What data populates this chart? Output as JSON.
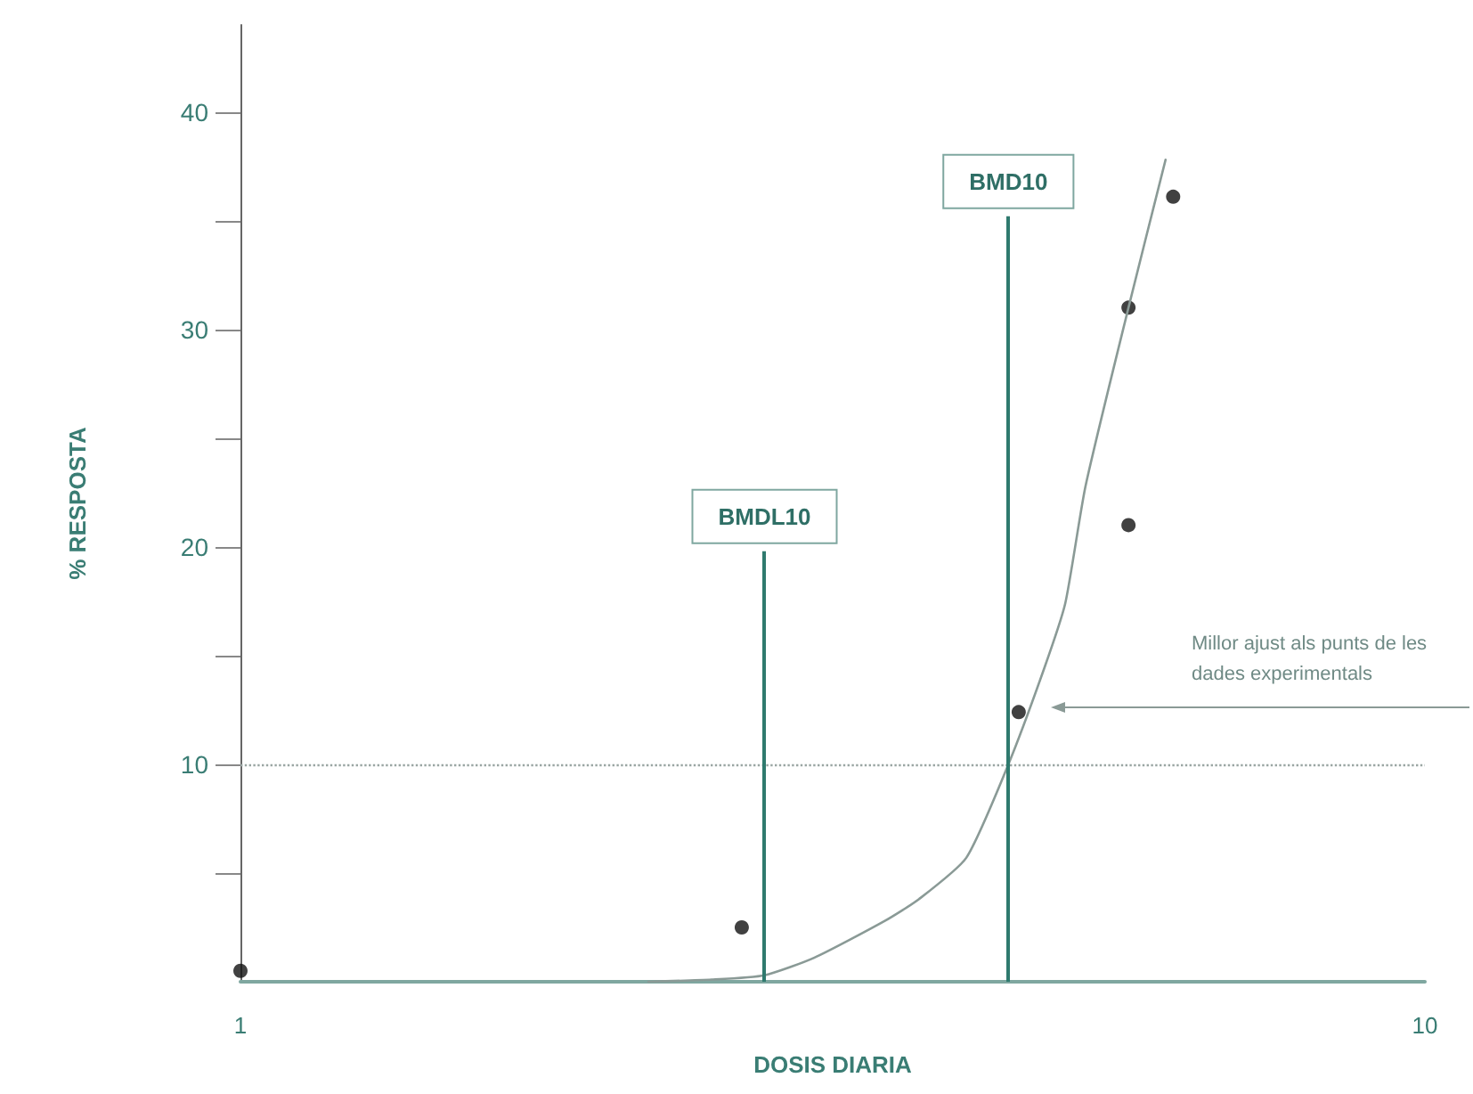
{
  "chart_data": {
    "type": "scatter",
    "xlabel": "DOSIS DIARIA",
    "ylabel": "% RESPOSTA",
    "log": "x",
    "xlim": [
      1,
      10
    ],
    "xticks": [
      1,
      10
    ],
    "ylim": [
      0,
      44
    ],
    "yticks": [
      {
        "value": 5,
        "label": null
      },
      10,
      {
        "value": 15,
        "label": null
      },
      20,
      {
        "value": 25,
        "label": null
      },
      30,
      {
        "value": 35,
        "label": null
      },
      40
    ],
    "grid": false,
    "marker": "circle",
    "series": [
      {
        "color": "#111111",
        "x": [
          1.0,
          2.65,
          4.54,
          5.62,
          5.62,
          6.13
        ],
        "values": [
          0.5,
          2.5,
          12.4,
          21,
          31,
          36.1
        ]
      },
      {
        "type": "line",
        "color": "#8a9a96",
        "marker": "none",
        "line_style": "solid",
        "x": [
          2.21,
          2.5,
          2.77,
          3.05,
          3.5,
          3.74,
          4.1,
          4.45,
          4.77,
          4.97,
          5.17,
          5.62,
          6.04
        ],
        "values": [
          0,
          0.1,
          0.3,
          1.1,
          2.8,
          3.8,
          5.7,
          10,
          14.4,
          17.4,
          22.8,
          31,
          37.8
        ]
      }
    ],
    "ref_lines": [
      {
        "axis": "y",
        "value": 10,
        "color": "#9aa6a3",
        "line_style": "dotted"
      },
      {
        "axis": "x",
        "value": 2.77,
        "label": "BMDL10",
        "color": "#2f7a6e",
        "line_style": "solid"
      },
      {
        "axis": "x",
        "value": 4.45,
        "label": "BMD10",
        "color": "#2f7a6e",
        "line_style": "solid"
      }
    ],
    "annotations": [
      "Millor ajust als punts de les dades experimentals"
    ]
  }
}
